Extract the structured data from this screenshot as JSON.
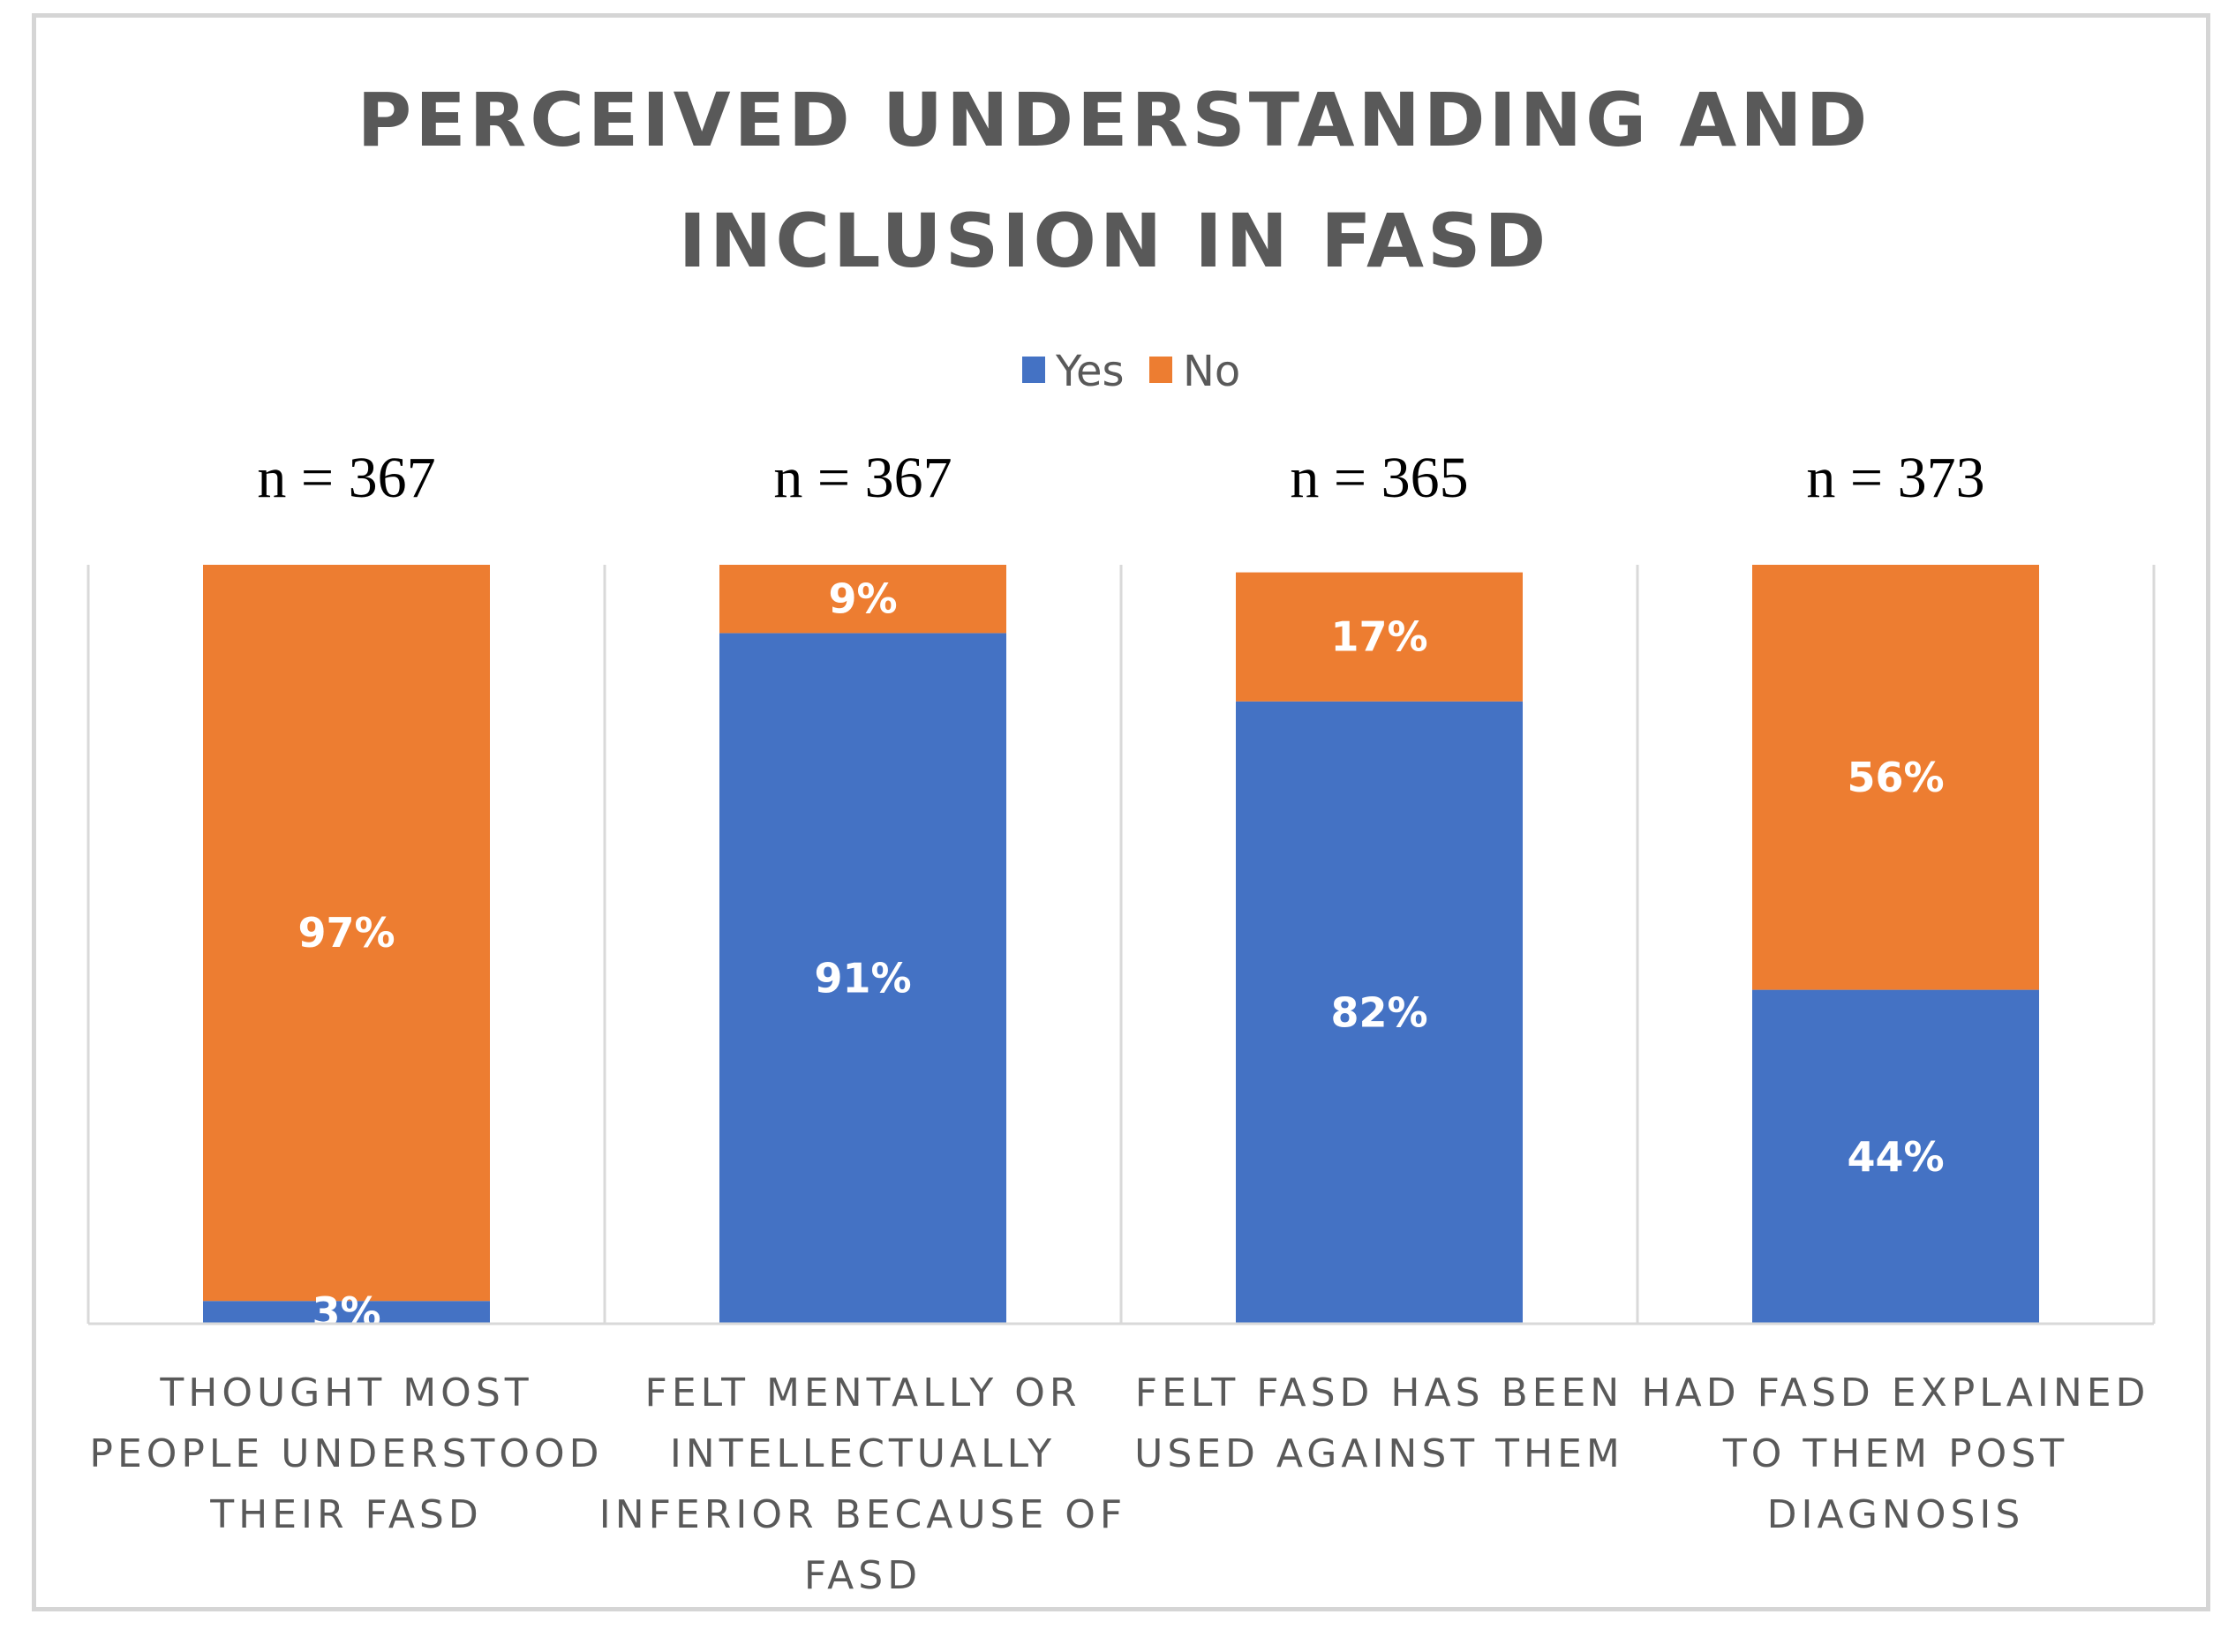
{
  "chart_data": {
    "type": "bar",
    "stacked": true,
    "title_lines": [
      "PERCEIVED UNDERSTANDING AND",
      "INCLUSION IN FASD"
    ],
    "legend": [
      {
        "name": "Yes",
        "color": "#4472C4"
      },
      {
        "name": "No",
        "color": "#ED7D31"
      }
    ],
    "categories": [
      {
        "lines": [
          "THOUGHT MOST",
          "PEOPLE UNDERSTOOD",
          "THEIR FASD"
        ],
        "n_label": "n = 367"
      },
      {
        "lines": [
          "FELT MENTALLY OR",
          "INTELLECTUALLY",
          "INFERIOR BECAUSE OF",
          "FASD"
        ],
        "n_label": "n = 367"
      },
      {
        "lines": [
          "FELT FASD HAS BEEN",
          "USED AGAINST THEM"
        ],
        "n_label": "n = 365"
      },
      {
        "lines": [
          "HAD FASD EXPLAINED",
          "TO THEM POST",
          "DIAGNOSIS"
        ],
        "n_label": "n = 373"
      }
    ],
    "series": [
      {
        "name": "Yes",
        "values": [
          3,
          91,
          82,
          44
        ],
        "labels": [
          "3%",
          "91%",
          "82%",
          "44%"
        ]
      },
      {
        "name": "No",
        "values": [
          97,
          9,
          17,
          56
        ],
        "labels": [
          "97%",
          "9%",
          "17%",
          "56%"
        ]
      }
    ],
    "ylim": [
      0,
      100
    ]
  }
}
